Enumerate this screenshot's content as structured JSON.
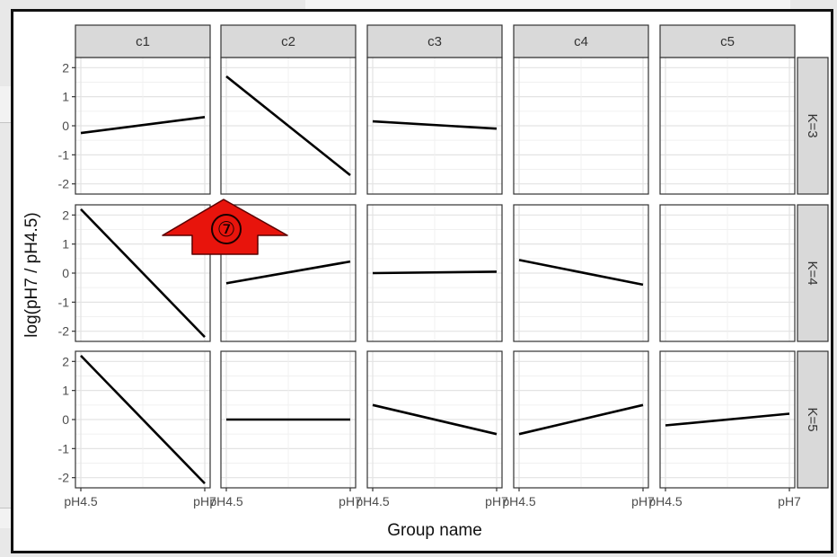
{
  "chart_data": {
    "type": "line",
    "facet_columns": [
      "c1",
      "c2",
      "c3",
      "c4",
      "c5"
    ],
    "facet_rows": [
      "K=3",
      "K=4",
      "K=5"
    ],
    "x": [
      "pH4.5",
      "pH7"
    ],
    "xlabel": "Group name",
    "ylabel": "log(pH7 / pH4.5)",
    "ylim": [
      -2.35,
      2.35
    ],
    "yticks": [
      2,
      1,
      0,
      -1,
      -2
    ],
    "grid": true,
    "legend": "none",
    "line_color": "#000000",
    "panels": [
      {
        "row": "K=3",
        "col": "c1",
        "values": [
          -0.25,
          0.3
        ]
      },
      {
        "row": "K=3",
        "col": "c2",
        "values": [
          1.7,
          -1.7
        ]
      },
      {
        "row": "K=3",
        "col": "c3",
        "values": [
          0.15,
          -0.1
        ]
      },
      {
        "row": "K=3",
        "col": "c4",
        "values": null
      },
      {
        "row": "K=3",
        "col": "c5",
        "values": null
      },
      {
        "row": "K=4",
        "col": "c1",
        "values": [
          2.2,
          -2.2
        ]
      },
      {
        "row": "K=4",
        "col": "c2",
        "values": [
          -0.35,
          0.4
        ]
      },
      {
        "row": "K=4",
        "col": "c3",
        "values": [
          0.0,
          0.05
        ]
      },
      {
        "row": "K=4",
        "col": "c4",
        "values": [
          0.45,
          -0.4
        ]
      },
      {
        "row": "K=4",
        "col": "c5",
        "values": null
      },
      {
        "row": "K=5",
        "col": "c1",
        "values": [
          2.2,
          -2.2
        ]
      },
      {
        "row": "K=5",
        "col": "c2",
        "values": [
          0.0,
          0.0
        ]
      },
      {
        "row": "K=5",
        "col": "c3",
        "values": [
          0.5,
          -0.5
        ]
      },
      {
        "row": "K=5",
        "col": "c4",
        "values": [
          -0.5,
          0.5
        ]
      },
      {
        "row": "K=5",
        "col": "c5",
        "values": [
          -0.2,
          0.2
        ]
      }
    ]
  },
  "annotation": {
    "label": "⑦",
    "color": "#e8140c"
  }
}
